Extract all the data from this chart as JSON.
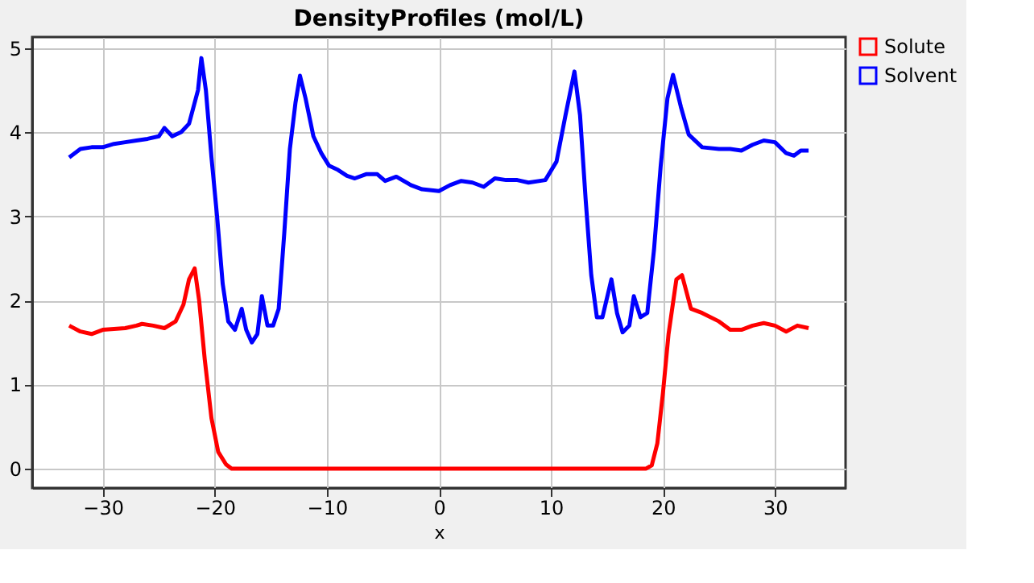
{
  "chart_data": {
    "type": "line",
    "title": "DensityProfiles (mol/L)",
    "xlabel": "x",
    "xlim": [
      -36.3,
      36.3
    ],
    "xticks": [
      -30,
      -20,
      -10,
      0,
      10,
      20,
      30
    ],
    "ylim": [
      -0.23,
      5.13
    ],
    "yticks": [
      0,
      1,
      2,
      3,
      4,
      5
    ],
    "grid": true,
    "legend": "top right",
    "marker": "none",
    "line_style": "solid",
    "series": [
      {
        "name": "Solute",
        "color": "#ff0000",
        "x": [
          -33,
          -32,
          -31,
          -30,
          -28,
          -27,
          -26.5,
          -25.5,
          -24.5,
          -23.5,
          -22.8,
          -22.3,
          -21.8,
          -21.4,
          -20.9,
          -20.3,
          -19.7,
          -19,
          -18.5,
          18.5,
          19,
          19.5,
          20,
          20.5,
          21.2,
          21.7,
          22.5,
          23.5,
          25,
          26,
          27,
          28,
          29,
          30,
          31,
          32,
          33
        ],
        "values": [
          1.7,
          1.63,
          1.6,
          1.65,
          1.67,
          1.7,
          1.72,
          1.7,
          1.67,
          1.75,
          1.95,
          2.25,
          2.38,
          2.0,
          1.3,
          0.6,
          0.2,
          0.05,
          0.0,
          0.0,
          0.04,
          0.3,
          0.9,
          1.6,
          2.25,
          2.3,
          1.9,
          1.85,
          1.75,
          1.65,
          1.65,
          1.7,
          1.73,
          1.7,
          1.63,
          1.7,
          1.67
        ]
      },
      {
        "name": "Solvent",
        "color": "#0000ff",
        "x": [
          -33,
          -32,
          -31,
          -30,
          -29,
          -28,
          -27,
          -26,
          -25,
          -24.5,
          -23.8,
          -23,
          -22.3,
          -21.5,
          -21.2,
          -20.8,
          -20.3,
          -19.8,
          -19.3,
          -18.8,
          -18.2,
          -17.6,
          -17.2,
          -16.7,
          -16.2,
          -15.8,
          -15.3,
          -14.8,
          -14.3,
          -13.8,
          -13.3,
          -12.8,
          -12.4,
          -11.9,
          -11.2,
          -10.5,
          -9.8,
          -9,
          -8.2,
          -7.5,
          -6.5,
          -5.5,
          -4.8,
          -3.8,
          -2.5,
          -1.5,
          0,
          1,
          2,
          3,
          4,
          5,
          6,
          7,
          8,
          9.5,
          10.5,
          11.3,
          12.1,
          12.6,
          13.1,
          13.6,
          14.1,
          14.6,
          15.4,
          15.9,
          16.4,
          17,
          17.4,
          18,
          18.6,
          19.2,
          19.8,
          20.4,
          20.9,
          21.6,
          22.3,
          23.5,
          25,
          26,
          27,
          28,
          29,
          30,
          31,
          31.7,
          32.3,
          33
        ],
        "values": [
          3.7,
          3.8,
          3.82,
          3.82,
          3.86,
          3.88,
          3.9,
          3.92,
          3.95,
          4.05,
          3.95,
          4.0,
          4.1,
          4.5,
          4.88,
          4.5,
          3.7,
          3.0,
          2.2,
          1.75,
          1.65,
          1.9,
          1.65,
          1.5,
          1.6,
          2.05,
          1.7,
          1.7,
          1.9,
          2.8,
          3.8,
          4.35,
          4.67,
          4.4,
          3.95,
          3.75,
          3.6,
          3.55,
          3.48,
          3.45,
          3.5,
          3.5,
          3.42,
          3.47,
          3.37,
          3.32,
          3.3,
          3.37,
          3.42,
          3.4,
          3.35,
          3.45,
          3.43,
          3.43,
          3.4,
          3.43,
          3.65,
          4.2,
          4.72,
          4.2,
          3.2,
          2.3,
          1.8,
          1.8,
          2.25,
          1.85,
          1.62,
          1.7,
          2.05,
          1.8,
          1.85,
          2.6,
          3.6,
          4.4,
          4.68,
          4.3,
          3.97,
          3.82,
          3.8,
          3.8,
          3.78,
          3.85,
          3.9,
          3.88,
          3.75,
          3.72,
          3.78,
          3.78
        ]
      }
    ]
  }
}
